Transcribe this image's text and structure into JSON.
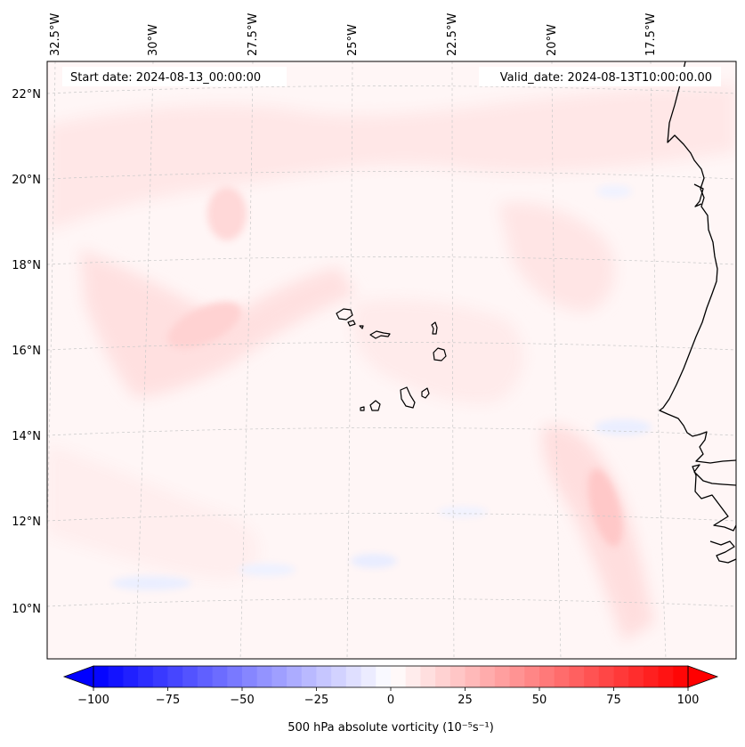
{
  "map": {
    "start_label": "Start date: 2024-08-13_00:00:00",
    "valid_label": "Valid_date: 2024-08-13T10:00:00.00",
    "lon_labels": [
      "32.5°W",
      "30°W",
      "27.5°W",
      "25°W",
      "22.5°W",
      "20°W",
      "17.5°W"
    ],
    "lat_labels": [
      "22°N",
      "20°N",
      "18°N",
      "16°N",
      "14°N",
      "12°N",
      "10°N"
    ],
    "field": "500 hPa absolute vorticity",
    "coastline_color": "#000000",
    "gridline_color": "#c8c8c8"
  },
  "colorbar": {
    "label": "500 hPa absolute vorticity (10⁻⁵s⁻¹)",
    "min": -100,
    "max": 100,
    "tick_values": [
      -100,
      -75,
      -50,
      -25,
      0,
      25,
      50,
      75,
      100
    ],
    "tick_labels": [
      "−100",
      "−75",
      "−50",
      "−25",
      "0",
      "25",
      "50",
      "75",
      "100"
    ],
    "colormap": "bwr",
    "low_color": "#0000ff",
    "mid_color": "#ffffff",
    "high_color": "#ff0000"
  }
}
